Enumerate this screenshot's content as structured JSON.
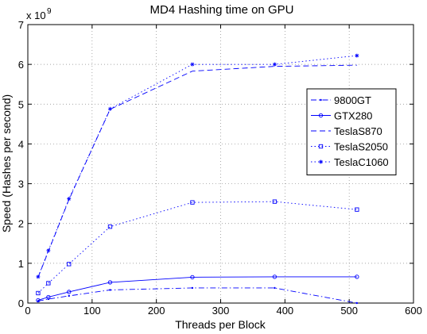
{
  "chart_data": {
    "type": "line",
    "title": "MD4 Hashing time on GPU",
    "xlabel": "Threads per Block",
    "ylabel": "Speed (Hashes per second)",
    "y_multiplier_label": "x 10",
    "y_multiplier_exponent": "9",
    "xlim": [
      0,
      600
    ],
    "ylim": [
      0,
      7
    ],
    "x_ticks": [
      0,
      100,
      200,
      300,
      400,
      500,
      600
    ],
    "y_ticks": [
      0,
      1,
      2,
      3,
      4,
      5,
      6,
      7
    ],
    "grid": true,
    "legend_position": "right",
    "x": [
      16,
      32,
      64,
      128,
      256,
      384,
      512
    ],
    "series": [
      {
        "name": "9800GT",
        "values": [
          0.05,
          0.1,
          0.18,
          0.33,
          0.38,
          0.38,
          0.0
        ],
        "line_style": "dashdot",
        "marker": "point",
        "color": "#0000ff"
      },
      {
        "name": "GTX280",
        "values": [
          0.07,
          0.15,
          0.28,
          0.52,
          0.65,
          0.66,
          0.66
        ],
        "line_style": "solid",
        "marker": "circle",
        "color": "#0000ff"
      },
      {
        "name": "TeslaS870",
        "values": [
          0.65,
          1.3,
          2.6,
          4.87,
          5.83,
          5.95,
          5.98
        ],
        "line_style": "dashed",
        "marker": "none",
        "color": "#0000ff"
      },
      {
        "name": "TeslaS2050",
        "values": [
          0.25,
          0.5,
          0.98,
          1.92,
          2.53,
          2.55,
          2.35
        ],
        "line_style": "dotted",
        "marker": "square",
        "color": "#0000ff"
      },
      {
        "name": "TeslaC1060",
        "values": [
          0.66,
          1.32,
          2.62,
          4.88,
          6.0,
          6.0,
          6.22
        ],
        "line_style": "dotted",
        "marker": "star",
        "color": "#0000ff"
      }
    ]
  }
}
